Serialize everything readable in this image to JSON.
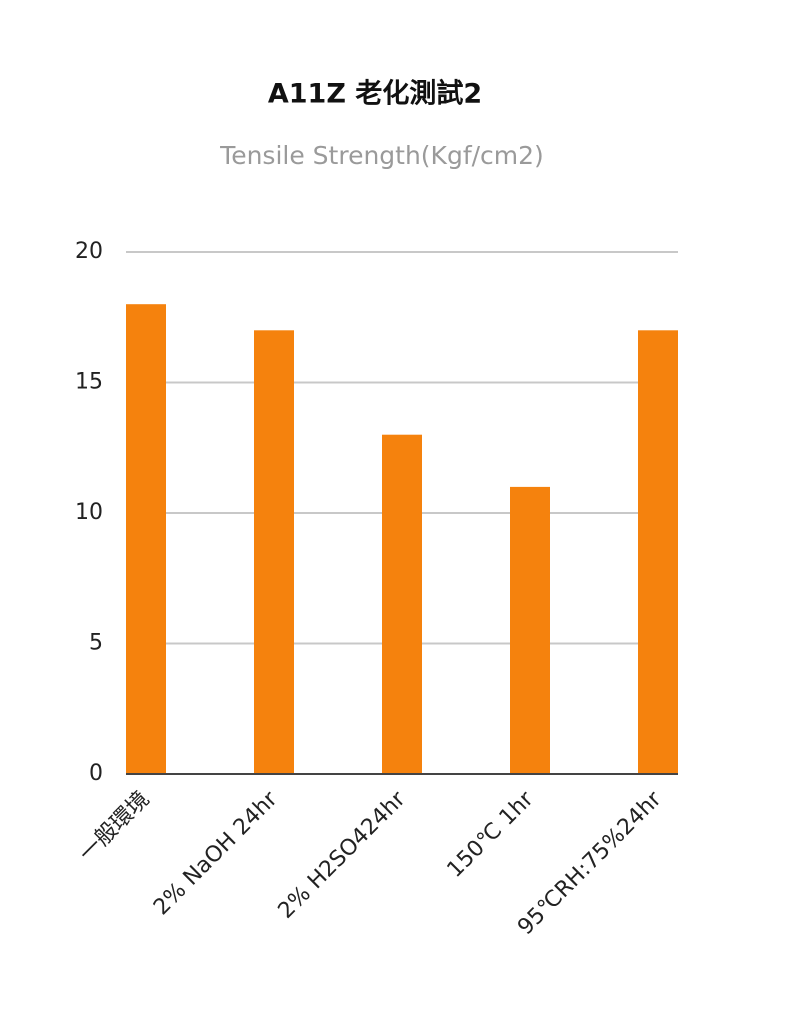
{
  "chart_data": {
    "type": "bar",
    "title": "A11Z 老化測試2",
    "subtitle": "Tensile Strength(Kgf/cm2)",
    "categories": [
      "一般環境",
      "2% NaOH 24hr",
      "2% H2SO424hr",
      "150℃ 1hr",
      "95℃RH:75%24hr"
    ],
    "values": [
      18,
      17,
      13,
      11,
      17
    ],
    "color": "#f5820d",
    "ylim": [
      0,
      20
    ],
    "yticks": [
      0,
      5,
      10,
      15,
      20
    ],
    "grid": true
  }
}
